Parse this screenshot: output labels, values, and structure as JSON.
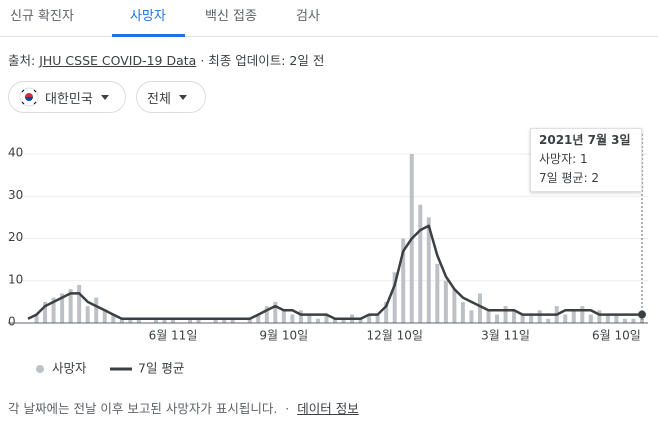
{
  "tabs": [
    "신규 확진자",
    "사망자",
    "백신 접종",
    "검사"
  ],
  "source": {
    "label": "출처:",
    "link": "JHU CSSE COVID-19 Data",
    "updated": "· 최종 업데이트: 2일 전"
  },
  "chips": [
    "대한민국",
    "전체"
  ],
  "tooltip": {
    "date": "2021년 7월 3일",
    "deaths": "사망자: 1",
    "average": "7일 평균: 2"
  },
  "footer": {
    "note": "각 날짜에는 전날 이후 보고된 사망자가 표시됩니다.",
    "separator": "·",
    "link": "데이터 정보"
  },
  "chart_data": {
    "type": "bar",
    "categories": [
      null,
      null,
      null,
      null,
      null,
      null,
      null,
      null,
      null,
      null,
      null,
      null,
      null,
      null,
      null,
      null,
      null,
      "6월 11일",
      null,
      null,
      null,
      null,
      null,
      null,
      null,
      null,
      null,
      null,
      null,
      null,
      "9월 10일",
      null,
      null,
      null,
      null,
      null,
      null,
      null,
      null,
      null,
      null,
      null,
      null,
      "12월 10일",
      null,
      null,
      null,
      null,
      null,
      null,
      null,
      null,
      null,
      null,
      null,
      null,
      "3월 11일",
      null,
      null,
      null,
      null,
      null,
      null,
      null,
      null,
      null,
      null,
      null,
      null,
      "6월 10일",
      null,
      null,
      null
    ],
    "series": [
      {
        "name": "사망자",
        "type": "bar",
        "color": "#bdc1c6",
        "values": [
          0,
          2,
          5,
          6,
          7,
          8,
          9,
          4,
          6,
          3,
          2,
          1,
          1,
          1,
          0,
          1,
          1,
          1,
          0,
          1,
          1,
          0,
          1,
          1,
          1,
          0,
          1,
          2,
          4,
          5,
          3,
          2,
          3,
          2,
          1,
          2,
          1,
          1,
          2,
          1,
          2,
          2,
          5,
          12,
          20,
          40,
          28,
          25,
          14,
          10,
          8,
          5,
          3,
          7,
          3,
          2,
          4,
          3,
          2,
          2,
          3,
          1,
          4,
          2,
          3,
          4,
          2,
          3,
          2,
          2,
          1,
          1,
          1
        ]
      },
      {
        "name": "7일 평균",
        "type": "line",
        "color": "#3c4043",
        "values": [
          1,
          2,
          4,
          5,
          6,
          7,
          7,
          5,
          4,
          3,
          2,
          1,
          1,
          1,
          1,
          1,
          1,
          1,
          1,
          1,
          1,
          1,
          1,
          1,
          1,
          1,
          1,
          2,
          3,
          4,
          3,
          3,
          2,
          2,
          2,
          2,
          1,
          1,
          1,
          1,
          2,
          2,
          4,
          9,
          17,
          20,
          22,
          23,
          16,
          11,
          8,
          6,
          5,
          4,
          3,
          3,
          3,
          3,
          2,
          2,
          2,
          2,
          2,
          3,
          3,
          3,
          3,
          2,
          2,
          2,
          2,
          2,
          2
        ]
      }
    ],
    "ylim": [
      0,
      40
    ],
    "yticks": [
      0,
      10,
      20,
      30,
      40
    ],
    "grid": true,
    "legend": "bottom-left"
  }
}
